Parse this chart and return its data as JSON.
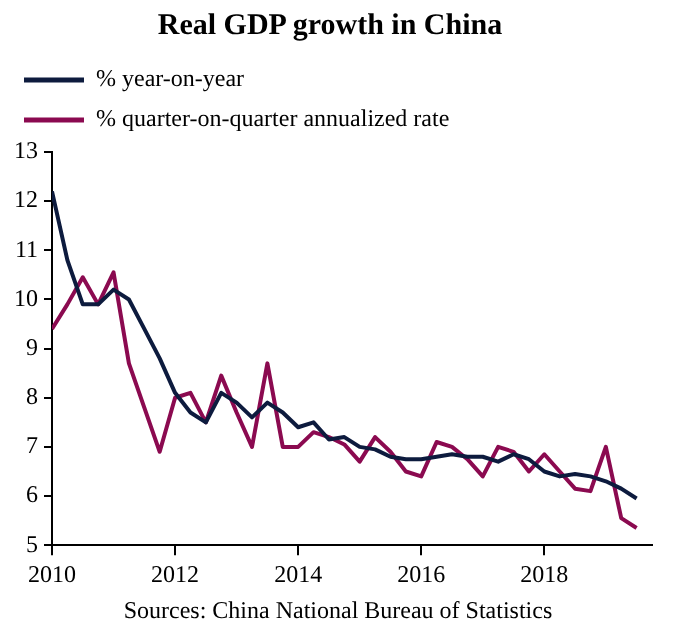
{
  "chart_data": {
    "type": "line",
    "title": "Real GDP growth in China",
    "x": [
      2010,
      2010.25,
      2010.5,
      2010.75,
      2011,
      2011.25,
      2011.5,
      2011.75,
      2012,
      2012.25,
      2012.5,
      2012.75,
      2013,
      2013.25,
      2013.5,
      2013.75,
      2014,
      2014.25,
      2014.5,
      2014.75,
      2015,
      2015.25,
      2015.5,
      2015.75,
      2016,
      2016.25,
      2016.5,
      2016.75,
      2017,
      2017.25,
      2017.5,
      2017.75,
      2018,
      2018.25,
      2018.5,
      2018.75,
      2019,
      2019.25,
      2019.5
    ],
    "series": [
      {
        "name": "% year-on-year",
        "color": "#0d1b3e",
        "values": [
          12.2,
          10.8,
          9.9,
          9.9,
          10.2,
          10.0,
          9.4,
          8.8,
          8.1,
          7.7,
          7.5,
          8.1,
          7.9,
          7.6,
          7.9,
          7.7,
          7.4,
          7.5,
          7.15,
          7.2,
          7.0,
          6.95,
          6.8,
          6.75,
          6.75,
          6.8,
          6.85,
          6.8,
          6.8,
          6.7,
          6.85,
          6.75,
          6.5,
          6.4,
          6.45,
          6.4,
          6.3,
          6.15,
          5.95
        ]
      },
      {
        "name": "% quarter-on-quarter annualized rate",
        "color": "#8b0a50",
        "values": [
          9.4,
          9.9,
          10.45,
          9.9,
          10.55,
          8.7,
          7.8,
          6.9,
          8.0,
          8.1,
          7.5,
          8.45,
          7.7,
          7.0,
          8.7,
          7.0,
          7.0,
          7.3,
          7.2,
          7.05,
          6.7,
          7.2,
          6.9,
          6.5,
          6.4,
          7.1,
          7.0,
          6.75,
          6.4,
          7.0,
          6.9,
          6.5,
          6.85,
          6.5,
          6.15,
          6.1,
          7.0,
          5.55,
          5.35
        ]
      }
    ],
    "xlim": [
      2010,
      2019.75
    ],
    "xticks": [
      2010,
      2012,
      2014,
      2016,
      2018
    ],
    "ylim": [
      5,
      13
    ],
    "yticks": [
      5,
      6,
      7,
      8,
      9,
      10,
      11,
      12,
      13
    ],
    "grid": false,
    "legend": "top left",
    "marker": "none",
    "line_style": "solid",
    "annotations": [
      "Sources: China National Bureau of Statistics"
    ]
  }
}
